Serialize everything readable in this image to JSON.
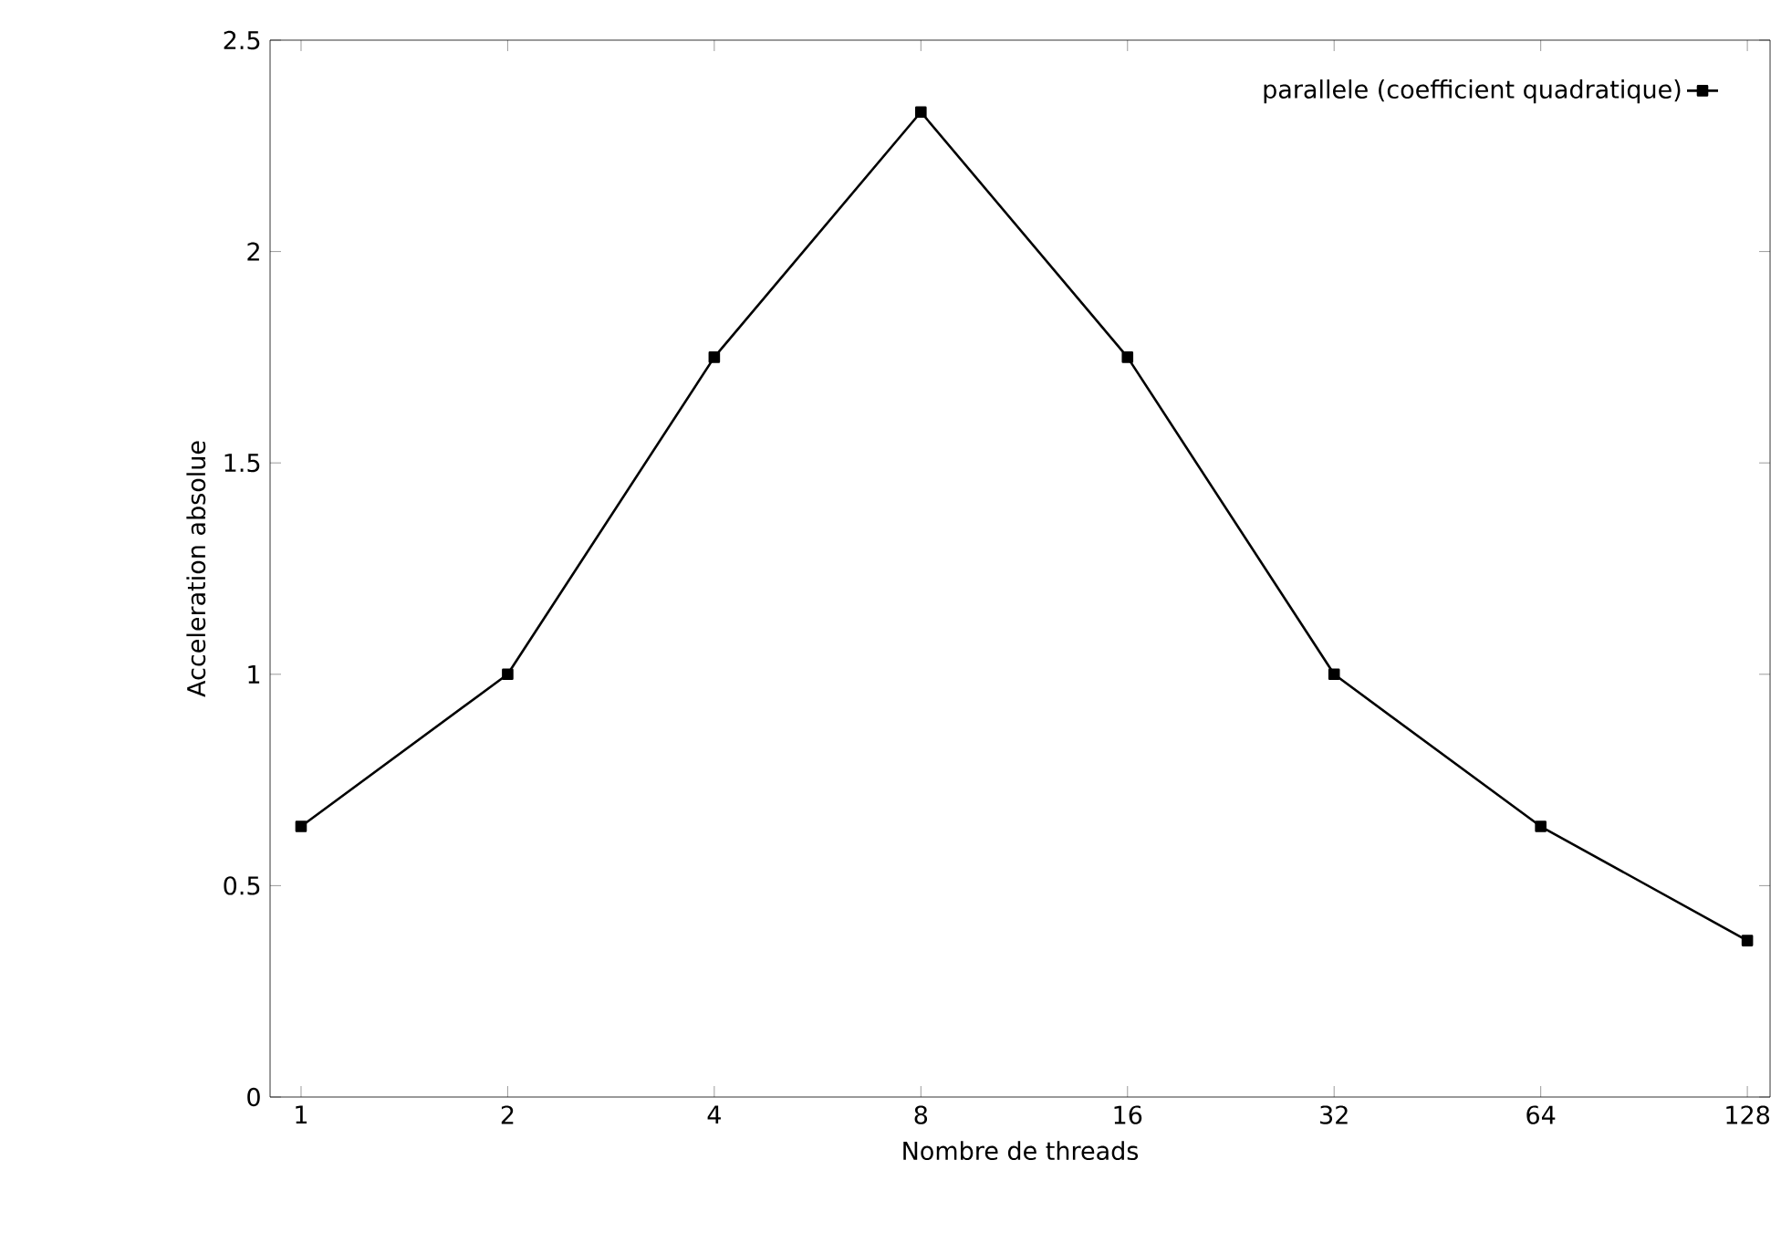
{
  "chart_data": {
    "type": "line",
    "xlabel": "Nombre de threads",
    "ylabel": "Acceleration absolue",
    "categories": [
      "1",
      "2",
      "4",
      "8",
      "16",
      "32",
      "64",
      "128"
    ],
    "series": [
      {
        "name": "parallele (coefficient quadratique)",
        "color": "#000000",
        "values": [
          0.64,
          1.0,
          1.75,
          2.33,
          1.75,
          1.0,
          0.64,
          0.37
        ]
      }
    ],
    "ylim": [
      0,
      2.5
    ],
    "yticks": [
      0,
      0.5,
      1,
      1.5,
      2,
      2.5
    ],
    "grid": false,
    "legend": "top right",
    "marker": "square",
    "line_style": "solid"
  }
}
